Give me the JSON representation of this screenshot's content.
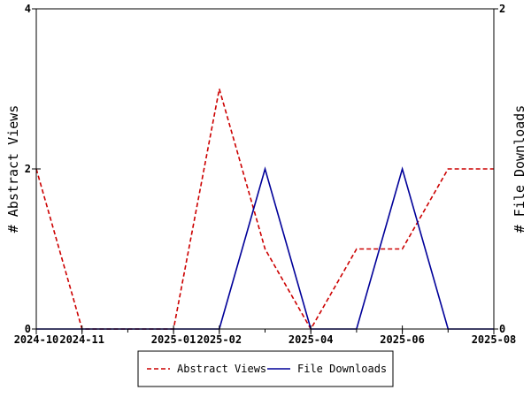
{
  "chart_data": {
    "type": "line",
    "x": [
      "2024-10",
      "2024-11",
      "2024-12",
      "2025-01",
      "2025-02",
      "2025-03",
      "2025-04",
      "2025-05",
      "2025-06",
      "2025-07",
      "2025-08"
    ],
    "x_tick_labels": [
      "2024-10",
      "2024-11",
      "2025-01",
      "2025-02",
      "2025-04",
      "2025-06",
      "2025-08"
    ],
    "series": [
      {
        "name": "Abstract Views",
        "axis": "left",
        "color": "#cc0000",
        "dash": "dashed",
        "values": [
          2,
          0,
          0,
          0,
          3,
          1,
          0,
          1,
          1,
          2,
          2
        ]
      },
      {
        "name": "File Downloads",
        "axis": "right",
        "color": "#000099",
        "dash": "solid",
        "values": [
          0,
          0,
          0,
          0,
          0,
          1,
          0,
          0,
          1,
          0,
          0
        ]
      }
    ],
    "ylabel": "# Abstract Views",
    "y2label": "# File Downloads",
    "ylim": [
      0,
      4
    ],
    "y2lim": [
      0,
      2
    ],
    "y_ticks": [
      0,
      2,
      4
    ],
    "y2_ticks": [
      0,
      2
    ],
    "legend_position": "bottom-center",
    "grid": false
  }
}
